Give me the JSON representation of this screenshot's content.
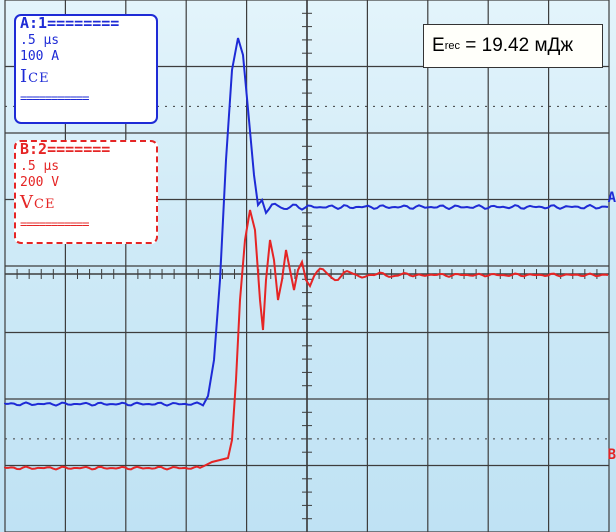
{
  "screen": {
    "background": "#cfeaf7",
    "grid_color": "#3d3d3d",
    "grid_divisions": {
      "x": 10,
      "y": 8
    }
  },
  "channels": [
    {
      "id": "A",
      "header": "A:1",
      "header_fill": "========",
      "time_div": ".5 µs",
      "scale": "100 A",
      "signal": "I",
      "signal_sub": "CE",
      "color": "#1e2bd6",
      "edge_marker": "A"
    },
    {
      "id": "B",
      "header": "B:2",
      "header_fill": "=======",
      "time_div": ".5 µs",
      "scale": "200 V",
      "signal": "V",
      "signal_sub": "CE",
      "color": "#e52525",
      "edge_marker": "B"
    }
  ],
  "legend_footer": "===========",
  "energy_label": {
    "symbol": "E",
    "subscript": "rec",
    "text": "= 19.42 мДж"
  }
}
